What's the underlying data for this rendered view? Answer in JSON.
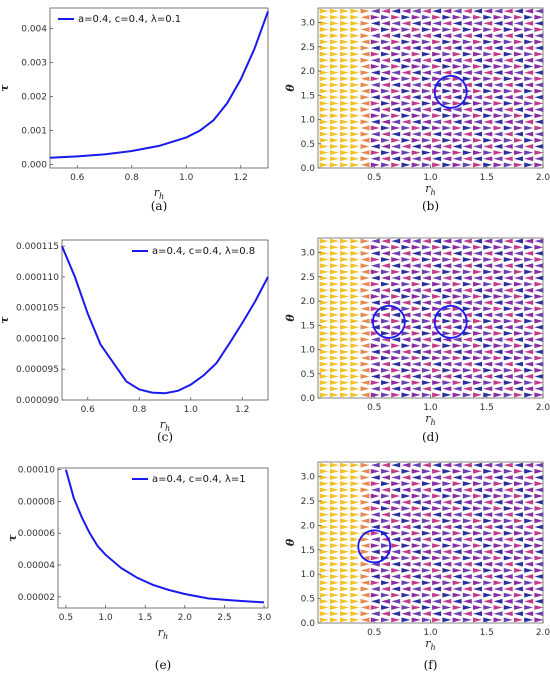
{
  "chart_data": [
    {
      "panel": "a",
      "type": "line",
      "caption": "(a)",
      "xlabel": "r_h",
      "ylabel": "τ",
      "legend": "a=0.4, c=0.4, λ=0.1",
      "legend_position": "top-left",
      "xlim": [
        0.5,
        1.3
      ],
      "ylim": [
        -0.0001,
        0.0046
      ],
      "xticks": [
        0.6,
        0.8,
        1.0,
        1.2
      ],
      "xtick_labels": [
        "0.6",
        "0.8",
        "1.0",
        "1.2"
      ],
      "yticks": [
        0.0,
        0.001,
        0.002,
        0.003,
        0.004
      ],
      "ytick_labels": [
        "0.000",
        "0.001",
        "0.002",
        "0.003",
        "0.004"
      ],
      "series": [
        {
          "name": "a=0.4, c=0.4, λ=0.1",
          "color": "#1a1aee",
          "x": [
            0.5,
            0.6,
            0.7,
            0.8,
            0.9,
            1.0,
            1.05,
            1.1,
            1.15,
            1.2,
            1.25,
            1.3
          ],
          "y": [
            0.0002,
            0.00024,
            0.0003,
            0.0004,
            0.00055,
            0.0008,
            0.001,
            0.0013,
            0.0018,
            0.0025,
            0.0034,
            0.0045
          ]
        }
      ]
    },
    {
      "panel": "b",
      "type": "vector_field",
      "caption": "(b)",
      "xlabel": "r_h",
      "ylabel": "θ",
      "xlim": [
        0,
        2.0
      ],
      "ylim": [
        0,
        3.3
      ],
      "xticks": [
        0.5,
        1.0,
        1.5,
        2.0
      ],
      "xtick_labels": [
        "0.5",
        "1.0",
        "1.5",
        "2.0"
      ],
      "yticks": [
        0.0,
        0.5,
        1.0,
        1.5,
        2.0,
        2.5,
        3.0
      ],
      "ytick_labels": [
        "0.0",
        "0.5",
        "1.0",
        "1.5",
        "2.0",
        "2.5",
        "3.0"
      ],
      "circles": [
        {
          "x": 1.18,
          "y": 1.57
        }
      ]
    },
    {
      "panel": "c",
      "type": "line",
      "caption": "(c)",
      "xlabel": "r_h",
      "ylabel": "τ",
      "legend": "a=0.4, c=0.4, λ=0.8",
      "legend_position": "top-right",
      "xlim": [
        0.5,
        1.3
      ],
      "ylim": [
        9e-05,
        0.000116
      ],
      "xticks": [
        0.6,
        0.8,
        1.0,
        1.2
      ],
      "xtick_labels": [
        "0.6",
        "0.8",
        "1.0",
        "1.2"
      ],
      "yticks": [
        9e-05,
        9.5e-05,
        0.0001,
        0.000105,
        0.00011,
        0.000115
      ],
      "ytick_labels": [
        "0.000090",
        "0.000095",
        "0.000100",
        "0.000105",
        "0.000110",
        "0.000115"
      ],
      "series": [
        {
          "name": "a=0.4, c=0.4, λ=0.8",
          "color": "#1a1aee",
          "x": [
            0.5,
            0.55,
            0.6,
            0.65,
            0.7,
            0.75,
            0.8,
            0.85,
            0.9,
            0.95,
            1.0,
            1.05,
            1.1,
            1.15,
            1.2,
            1.25,
            1.3
          ],
          "y": [
            0.000115,
            0.00011,
            0.000104,
            9.9e-05,
            9.6e-05,
            9.3e-05,
            9.17e-05,
            9.12e-05,
            9.11e-05,
            9.15e-05,
            9.25e-05,
            9.4e-05,
            9.6e-05,
            9.92e-05,
            0.0001025,
            0.000106,
            0.00011
          ]
        }
      ]
    },
    {
      "panel": "d",
      "type": "vector_field",
      "caption": "(d)",
      "xlabel": "r_h",
      "ylabel": "θ",
      "xlim": [
        0,
        2.0
      ],
      "ylim": [
        0,
        3.3
      ],
      "xticks": [
        0.5,
        1.0,
        1.5,
        2.0
      ],
      "xtick_labels": [
        "0.5",
        "1.0",
        "1.5",
        "2.0"
      ],
      "yticks": [
        0.0,
        0.5,
        1.0,
        1.5,
        2.0,
        2.5,
        3.0
      ],
      "ytick_labels": [
        "0.0",
        "0.5",
        "1.0",
        "1.5",
        "2.0",
        "2.5",
        "3.0"
      ],
      "circles": [
        {
          "x": 0.63,
          "y": 1.57
        },
        {
          "x": 1.18,
          "y": 1.57
        }
      ]
    },
    {
      "panel": "e",
      "type": "line",
      "caption": "(e)",
      "xlabel": "r_h",
      "ylabel": "τ",
      "legend": "a=0.4, c=0.4, λ=1",
      "legend_position": "top-right",
      "xlim": [
        0.4,
        3.05
      ],
      "ylim": [
        1.3e-05,
        0.000101
      ],
      "xticks": [
        0.5,
        1.0,
        1.5,
        2.0,
        2.5,
        3.0
      ],
      "xtick_labels": [
        "0.5",
        "1.0",
        "1.5",
        "2.0",
        "2.5",
        "3.0"
      ],
      "yticks": [
        2e-05,
        4e-05,
        6e-05,
        8e-05,
        0.0001
      ],
      "ytick_labels": [
        "0.00002",
        "0.00004",
        "0.00006",
        "0.00008",
        "0.00010"
      ],
      "series": [
        {
          "name": "a=0.4, c=0.4, λ=1",
          "color": "#1a1aee",
          "x": [
            0.5,
            0.6,
            0.7,
            0.8,
            0.9,
            1.0,
            1.2,
            1.4,
            1.6,
            1.8,
            2.0,
            2.3,
            2.6,
            3.0
          ],
          "y": [
            0.0001,
            8.2e-05,
            7e-05,
            6e-05,
            5.2e-05,
            4.65e-05,
            3.8e-05,
            3.2e-05,
            2.75e-05,
            2.43e-05,
            2.18e-05,
            1.9e-05,
            1.78e-05,
            1.65e-05
          ]
        }
      ]
    },
    {
      "panel": "f",
      "type": "vector_field",
      "caption": "(f)",
      "xlabel": "r_h",
      "ylabel": "θ",
      "xlim": [
        0,
        2.0
      ],
      "ylim": [
        0,
        3.3
      ],
      "xticks": [
        0.5,
        1.0,
        1.5,
        2.0
      ],
      "xtick_labels": [
        "0.5",
        "1.0",
        "1.5",
        "2.0"
      ],
      "yticks": [
        0.0,
        0.5,
        1.0,
        1.5,
        2.0,
        2.5,
        3.0
      ],
      "ytick_labels": [
        "0.0",
        "0.5",
        "1.0",
        "1.5",
        "2.0",
        "2.5",
        "3.0"
      ],
      "circles": [
        {
          "x": 0.5,
          "y": 1.57
        }
      ]
    }
  ]
}
